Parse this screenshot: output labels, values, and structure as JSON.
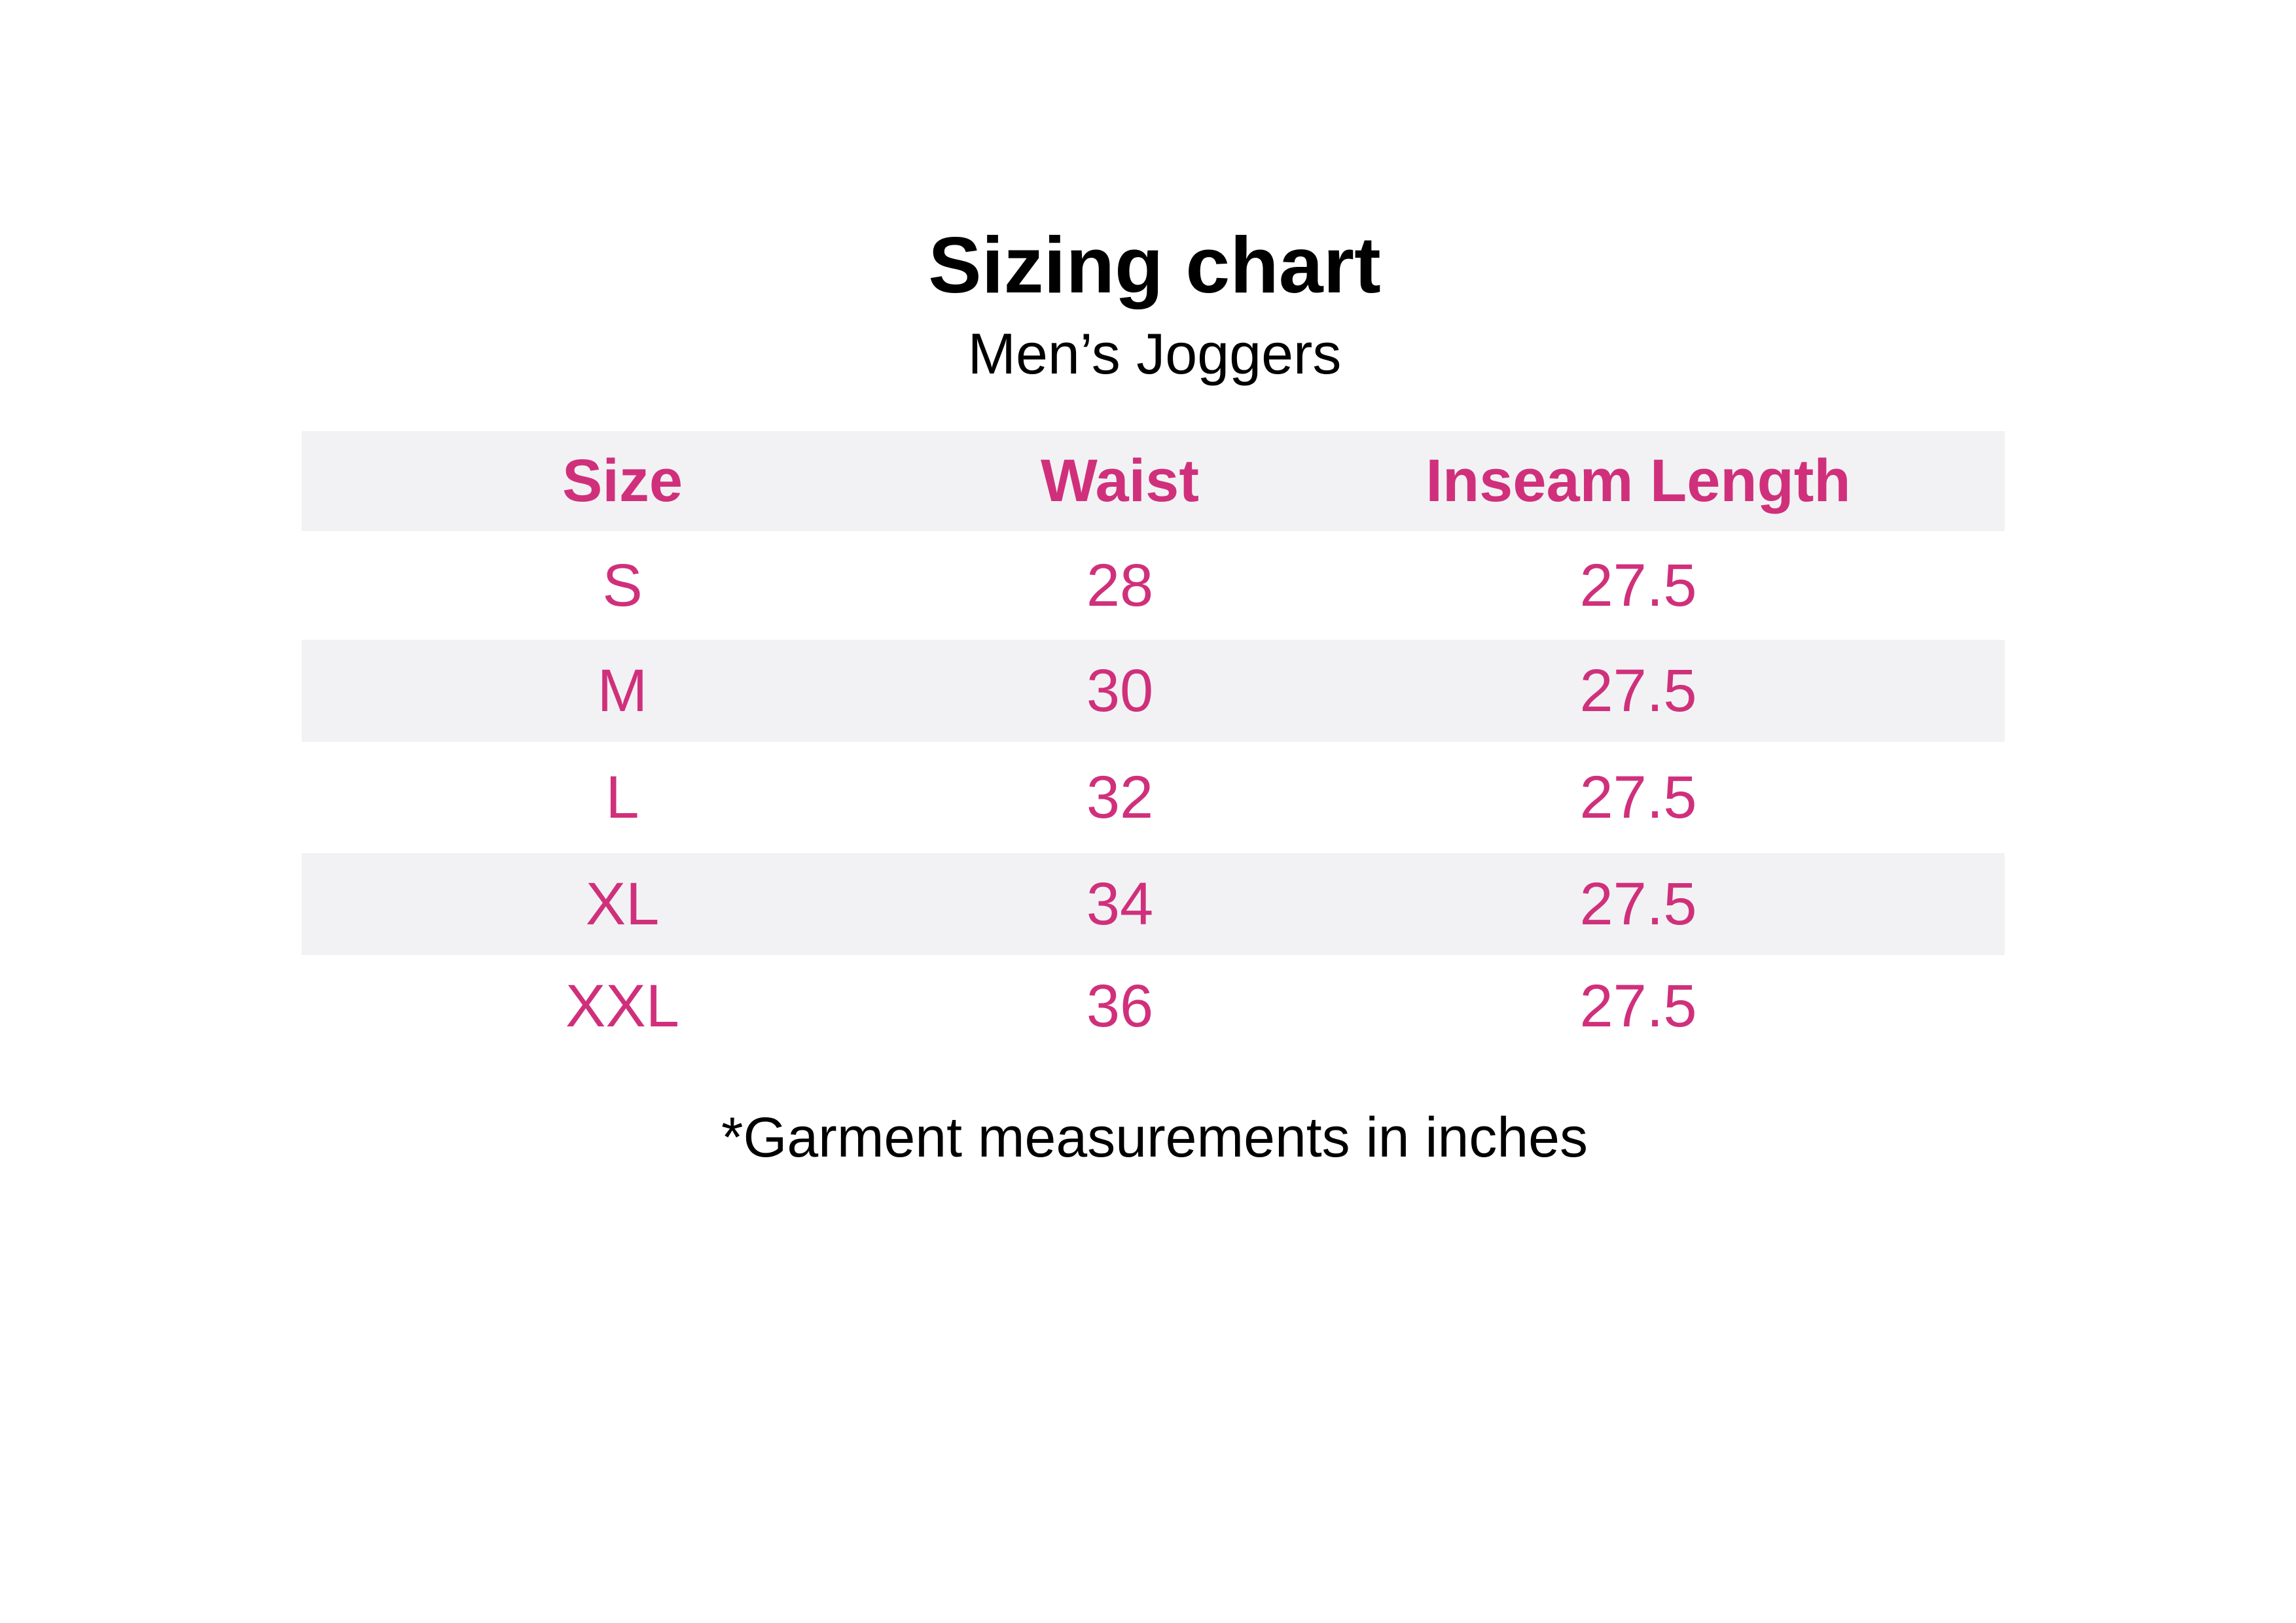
{
  "title": "Sizing chart",
  "subtitle": "Men’s Joggers",
  "colors": {
    "accent": "#d0307b",
    "band": "#f2f2f4"
  },
  "table": {
    "headers": [
      "Size",
      "Waist",
      "Inseam Length"
    ],
    "rows": [
      [
        "S",
        "28",
        "27.5"
      ],
      [
        "M",
        "30",
        "27.5"
      ],
      [
        "L",
        "32",
        "27.5"
      ],
      [
        "XL",
        "34",
        "27.5"
      ],
      [
        "XXL",
        "36",
        "27.5"
      ]
    ]
  },
  "footnote": "*Garment measurements in inches"
}
